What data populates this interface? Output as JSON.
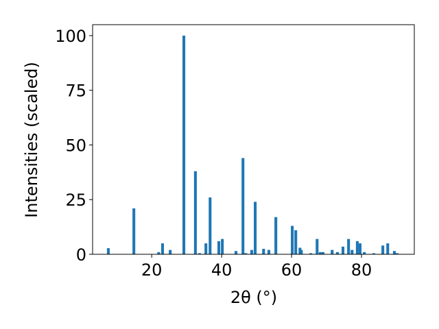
{
  "chart_data": {
    "type": "bar",
    "x_label": "2θ (°)",
    "y_label": "Intensities (scaled)",
    "x": [
      7.6,
      14.9,
      22.0,
      23.1,
      25.3,
      29.2,
      32.5,
      33.7,
      35.5,
      36.7,
      39.2,
      40.2,
      44.1,
      46.1,
      46.9,
      48.6,
      49.6,
      52.0,
      53.5,
      55.5,
      60.2,
      61.2,
      62.4,
      62.8,
      65.5,
      67.3,
      68.2,
      69.0,
      71.6,
      73.1,
      74.7,
      76.3,
      77.3,
      78.8,
      79.6,
      80.8,
      83.5,
      86.1,
      87.5,
      89.4,
      90.2
    ],
    "values": [
      2.8,
      21,
      1,
      5,
      2,
      100,
      38,
      0.5,
      5,
      26,
      6,
      7,
      1.5,
      44,
      0.5,
      2,
      24,
      2.5,
      2,
      17,
      13,
      11,
      3,
      2,
      0.5,
      7,
      1,
      1,
      2,
      1,
      3.5,
      7,
      2,
      6,
      5,
      1,
      0.5,
      4,
      5,
      1.5,
      0.5
    ],
    "color": "#1f77b4",
    "xlim": [
      3.1,
      95.1
    ],
    "xticks": [
      20,
      40,
      60,
      80
    ],
    "ylim": [
      0,
      105
    ],
    "yticks": [
      0,
      25,
      50,
      75,
      100
    ]
  }
}
